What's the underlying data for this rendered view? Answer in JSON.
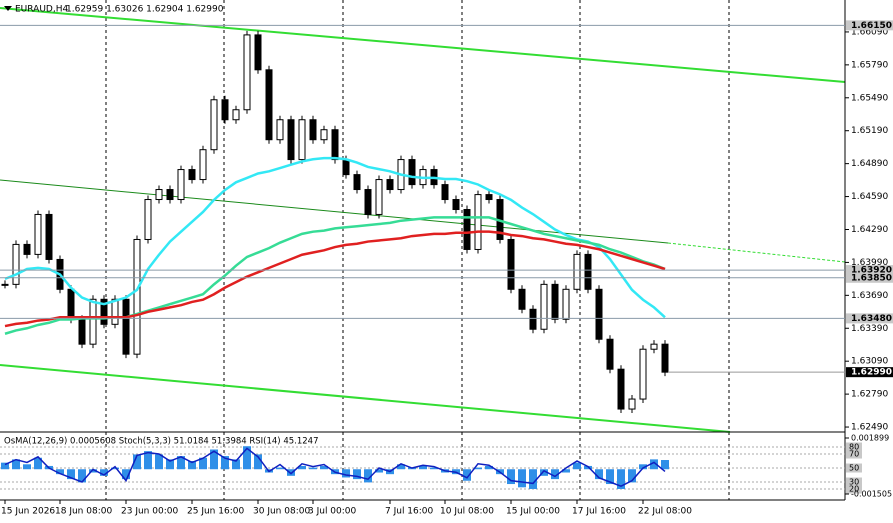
{
  "chart_data": [
    {
      "type": "candlestick",
      "title": "EURAUD,H4",
      "subtitle": "1.62959 1.63026 1.62904 1.62990",
      "categories": [
        "15 Jun 2026",
        null,
        null,
        null,
        null,
        "18 Jun 08:00",
        null,
        null,
        null,
        null,
        null,
        "23 Jun 00:00",
        null,
        null,
        null,
        null,
        null,
        "25 Jun 16:00",
        null,
        null,
        null,
        null,
        null,
        "30 Jun 08:00",
        null,
        null,
        null,
        null,
        "3 Jul 00:00",
        null,
        null,
        null,
        null,
        null,
        null,
        "7 Jul 16:00",
        null,
        null,
        null,
        null,
        "10 Jul 08:00",
        null,
        null,
        null,
        null,
        null,
        "15 Jul 00:00",
        null,
        null,
        null,
        null,
        null,
        "17 Jul 16:00",
        null,
        null,
        null,
        null,
        null,
        "22 Jul 08:00",
        null,
        null
      ],
      "series": [
        {
          "style": "candle",
          "up_color": "#ffffff",
          "down_color": "#000000",
          "values": [
            1.6379,
            1.64154,
            1.64063,
            1.64427,
            1.64017,
            1.63745,
            1.63472,
            1.63245,
            1.63654,
            1.63426,
            1.63654,
            1.63154,
            1.64199,
            1.64563,
            1.64654,
            1.64563,
            1.64836,
            1.64745,
            1.65017,
            1.65472,
            1.6529,
            1.65381,
            1.66063,
            1.65745,
            1.65108,
            1.6529,
            1.64927,
            1.6529,
            1.65108,
            1.65199,
            1.64927,
            1.6479,
            1.64654,
            1.64427,
            1.64745,
            1.64654,
            1.64927,
            1.64699,
            1.64836,
            1.64699,
            1.64563,
            1.64472,
            1.64108,
            1.64608,
            1.64563,
            1.64199,
            1.63745,
            1.63563,
            1.63381,
            1.6379,
            1.63472,
            1.63745,
            1.64063,
            1.63745,
            1.6329,
            1.63017,
            1.62654,
            1.62745,
            1.63199,
            1.63245,
            1.6299
          ]
        },
        {
          "style": "line",
          "color": "#33e8f5",
          "values": [
            1.6384,
            1.6388,
            1.6393,
            1.6394,
            1.6393,
            1.6388,
            1.6376,
            1.6367,
            1.6363,
            1.6361,
            1.6364,
            1.6367,
            1.6374,
            1.6393,
            1.6406,
            1.6418,
            1.6427,
            1.6436,
            1.6445,
            1.6456,
            1.6465,
            1.6472,
            1.6476,
            1.648,
            1.6482,
            1.6485,
            1.6488,
            1.6491,
            1.6493,
            1.6494,
            1.6494,
            1.6493,
            1.649,
            1.6486,
            1.6484,
            1.6482,
            1.6479,
            1.6477,
            1.6476,
            1.6476,
            1.6475,
            1.6475,
            1.6473,
            1.647,
            1.6465,
            1.6461,
            1.6456,
            1.6449,
            1.6443,
            1.6436,
            1.6429,
            1.6424,
            1.642,
            1.6418,
            1.6413,
            1.6402,
            1.6388,
            1.6374,
            1.6365,
            1.6358,
            1.6349
          ]
        },
        {
          "style": "line",
          "color": "#36dc96",
          "values": [
            1.6334,
            1.6337,
            1.6339,
            1.6342,
            1.6344,
            1.6347,
            1.6347,
            1.6348,
            1.6348,
            1.6348,
            1.6349,
            1.6349,
            1.6352,
            1.6355,
            1.6358,
            1.6361,
            1.6364,
            1.6367,
            1.637,
            1.6379,
            1.6387,
            1.6396,
            1.6404,
            1.6408,
            1.6412,
            1.6417,
            1.6421,
            1.6425,
            1.6427,
            1.6428,
            1.643,
            1.6431,
            1.6432,
            1.6433,
            1.6434,
            1.6435,
            1.6437,
            1.6438,
            1.6439,
            1.644,
            1.644,
            1.644,
            1.644,
            1.644,
            1.644,
            1.6437,
            1.6434,
            1.6431,
            1.6428,
            1.6425,
            1.6423,
            1.6421,
            1.6419,
            1.6417,
            1.6415,
            1.6411,
            1.6408,
            1.6404,
            1.64,
            1.6397,
            1.6393
          ]
        },
        {
          "style": "line",
          "color": "#e02020",
          "values": [
            1.6341,
            1.6343,
            1.6344,
            1.6346,
            1.6347,
            1.6349,
            1.6349,
            1.6349,
            1.6349,
            1.6349,
            1.6349,
            1.6349,
            1.6351,
            1.6354,
            1.6356,
            1.6358,
            1.636,
            1.6363,
            1.6365,
            1.637,
            1.6376,
            1.6381,
            1.6386,
            1.639,
            1.6394,
            1.6398,
            1.6402,
            1.6406,
            1.6408,
            1.641,
            1.6413,
            1.6415,
            1.6416,
            1.6418,
            1.6419,
            1.642,
            1.6421,
            1.6423,
            1.6424,
            1.6425,
            1.6425,
            1.6426,
            1.6426,
            1.6427,
            1.6427,
            1.6426,
            1.6424,
            1.6423,
            1.6421,
            1.642,
            1.6418,
            1.6416,
            1.6415,
            1.6413,
            1.6411,
            1.6408,
            1.6405,
            1.6402,
            1.6399,
            1.6396,
            1.6393
          ]
        }
      ],
      "ylim": [
        1.62463,
        1.66381
      ],
      "yticks": [
        {
          "value": 1.6609,
          "label": "1.66090"
        },
        {
          "value": 1.6579,
          "label": "1.65790"
        },
        {
          "value": 1.6549,
          "label": "1.65490"
        },
        {
          "value": 1.6519,
          "label": "1.65190"
        },
        {
          "value": 1.6489,
          "label": "1.64890"
        },
        {
          "value": 1.6459,
          "label": "1.64590"
        },
        {
          "value": 1.6429,
          "label": "1.64290"
        },
        {
          "value": 1.6399,
          "label": "1.63990"
        },
        {
          "value": 1.6369,
          "label": "1.63690"
        },
        {
          "value": 1.6339,
          "label": "1.63390"
        },
        {
          "value": 1.6309,
          "label": "1.63090"
        },
        {
          "value": 1.6279,
          "label": "1.62790"
        },
        {
          "value": 1.6249,
          "label": "1.62490"
        }
      ],
      "levels": [
        {
          "value": 1.6615,
          "label": "1.66150"
        },
        {
          "value": 1.6392,
          "label": "1.63920"
        },
        {
          "value": 1.6385,
          "label": "1.63850"
        },
        {
          "value": 1.6348,
          "label": "1.63480"
        }
      ],
      "last_price": {
        "value": 1.6299,
        "label": "1.62990"
      }
    },
    {
      "type": "oscillator",
      "title": "OsMA(12,26,9) 0.0005608 Stoch(5,3,3) 51.0184 51.3984 RSI(14) 45.1247",
      "series": [
        {
          "style": "histogram",
          "color": "#2f8fe8",
          "values": [
            0.0004,
            0.0006,
            0.0003,
            0.0007,
            0.0002,
            -0.0003,
            -0.0006,
            -0.0008,
            -0.0002,
            -0.0004,
            0.0001,
            -0.0006,
            0.0009,
            0.0011,
            0.0009,
            0.0006,
            0.0008,
            0.0005,
            0.0007,
            0.0012,
            0.0008,
            0.0006,
            0.0014,
            0.0009,
            -0.0002,
            0.0001,
            -0.0004,
            0.0002,
            0.0001,
            0.0002,
            -0.0003,
            -0.0005,
            -0.0006,
            -0.0008,
            -0.0002,
            -0.0003,
            0.0003,
            0.0001,
            0.0002,
            0.0001,
            -0.0002,
            -0.0003,
            -0.0007,
            0.0001,
            0.0002,
            -0.0003,
            -0.0009,
            -0.0011,
            -0.0012,
            -0.0004,
            -0.0006,
            -0.0002,
            0.0004,
            0.0002,
            -0.0006,
            -0.0009,
            -0.0012,
            -0.0008,
            0.0003,
            0.0006,
            0.0005608
          ]
        },
        {
          "style": "line",
          "axis": "y2",
          "color": "#1020c0",
          "values": [
            55,
            62,
            58,
            66,
            50,
            42,
            36,
            30,
            48,
            40,
            52,
            32,
            68,
            72,
            70,
            60,
            66,
            58,
            64,
            74,
            64,
            60,
            78,
            66,
            45,
            55,
            42,
            56,
            52,
            55,
            44,
            40,
            38,
            34,
            50,
            45,
            56,
            50,
            54,
            52,
            46,
            44,
            36,
            56,
            54,
            44,
            32,
            30,
            28,
            46,
            38,
            50,
            60,
            52,
            36,
            30,
            24,
            32,
            50,
            58,
            45.1247
          ]
        }
      ],
      "ylim": [
        -0.00187,
        0.002142
      ],
      "yticks": [
        0.001899,
        -0.001505
      ],
      "y2lim": [
        4.3,
        98.6
      ],
      "y2ticks": [
        80,
        70,
        50,
        30,
        20
      ]
    }
  ]
}
